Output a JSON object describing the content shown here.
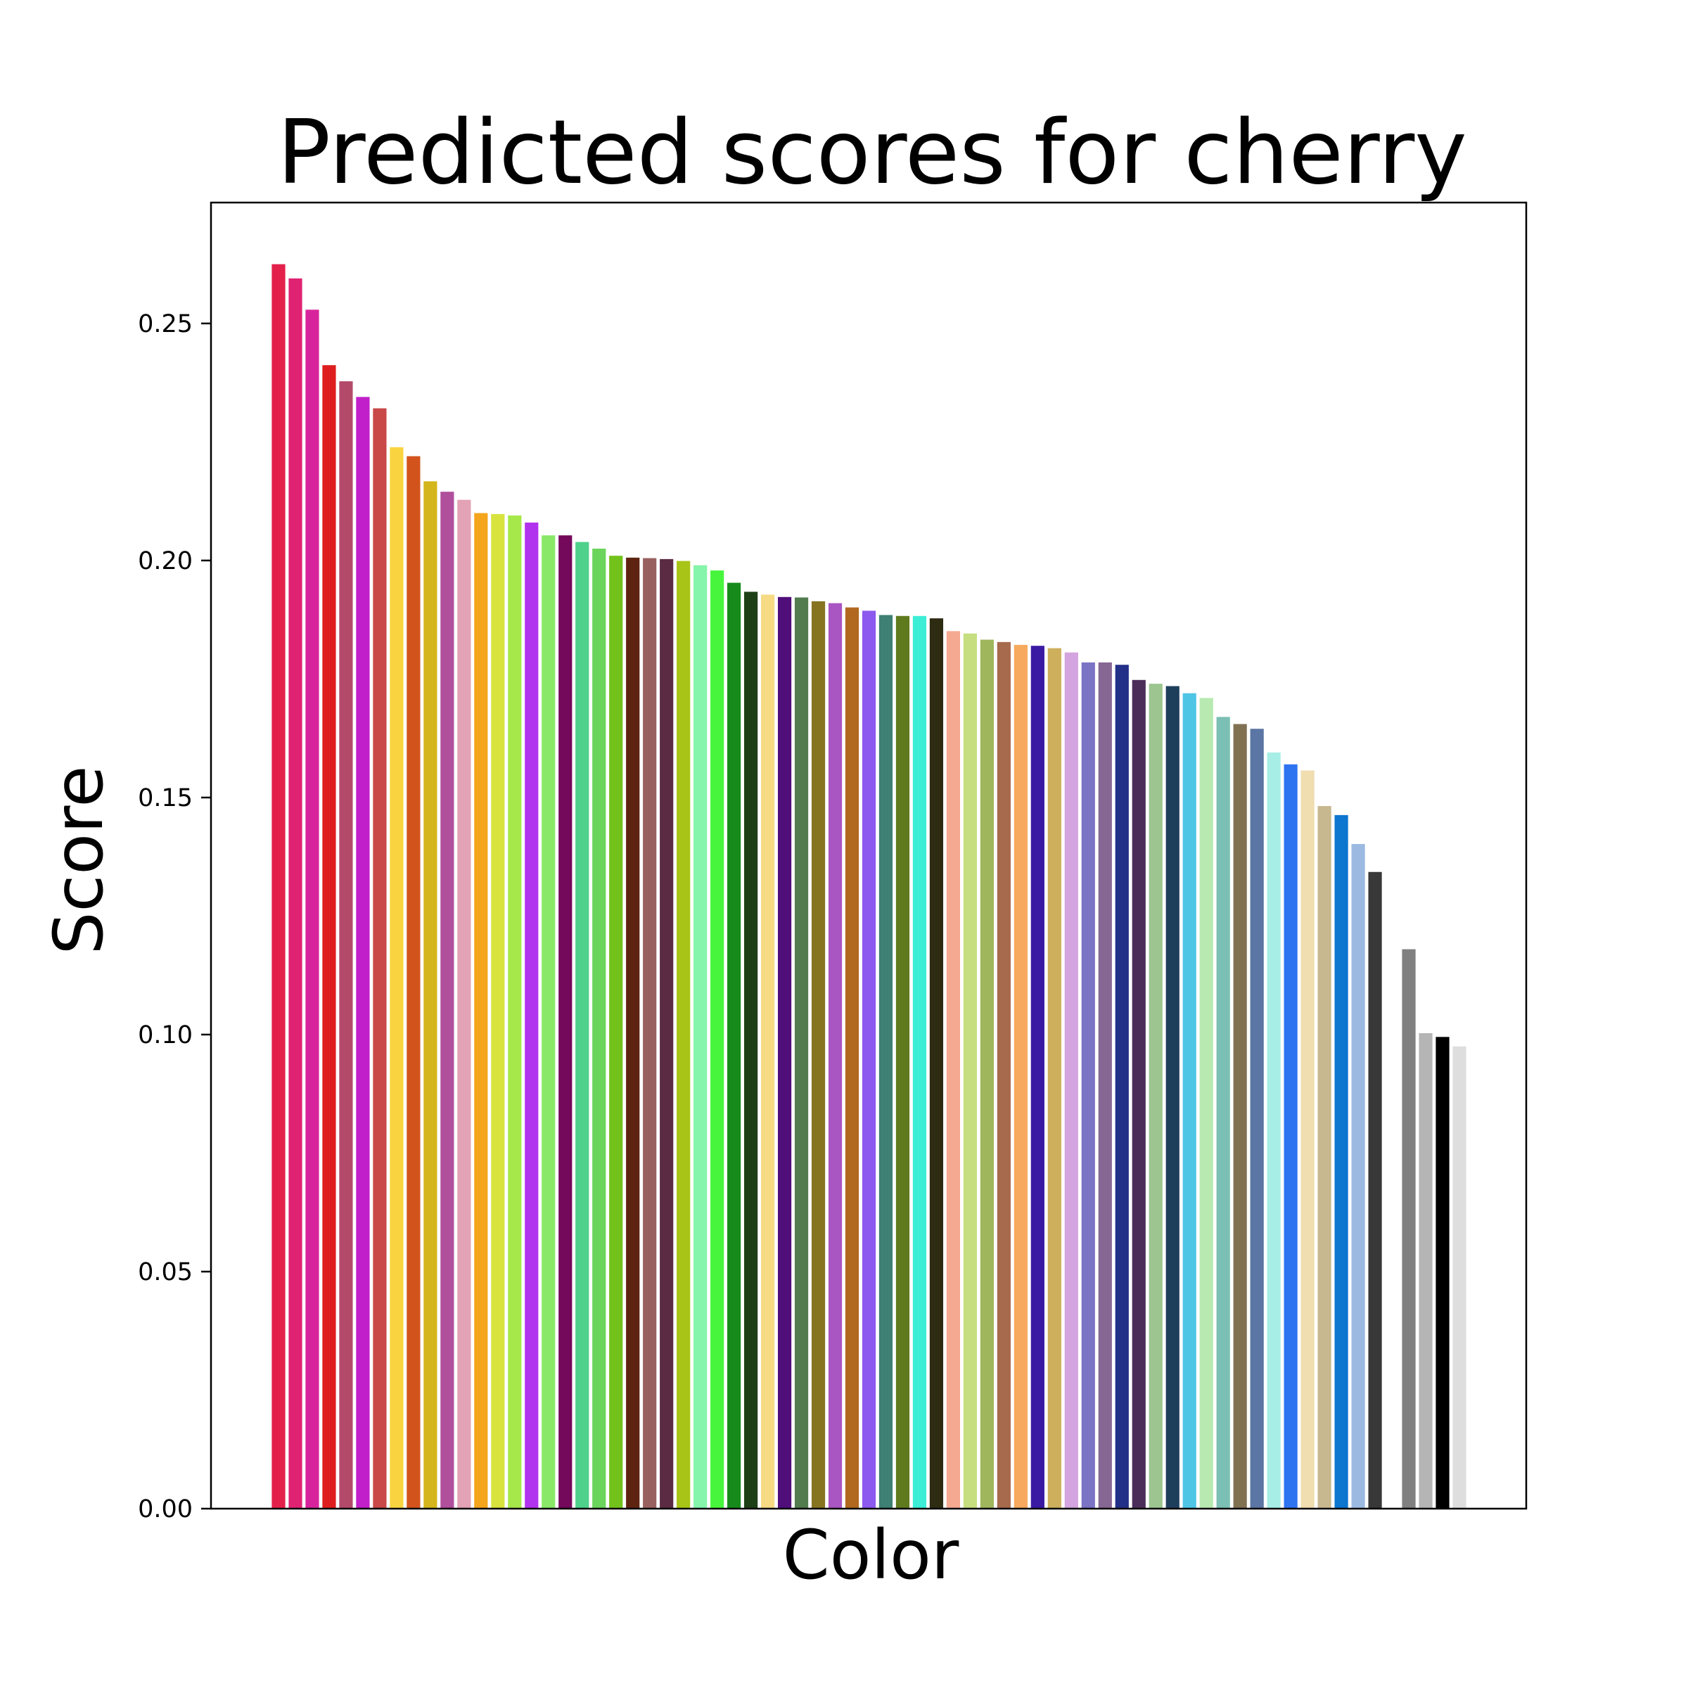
{
  "chart_data": {
    "type": "bar",
    "title": "Predicted scores for cherry",
    "xlabel": "Color",
    "ylabel": "Score",
    "ylim": [
      0,
      0.2755
    ],
    "yticks": [
      0.0,
      0.05,
      0.1,
      0.15,
      0.2,
      0.25
    ],
    "ytick_labels": [
      "0.00",
      "0.05",
      "0.10",
      "0.15",
      "0.20",
      "0.25"
    ],
    "grid": false,
    "x_ticks_shown": false,
    "bars": [
      {
        "value": 0.2625,
        "color": "#e3204a"
      },
      {
        "value": 0.2595,
        "color": "#e02272"
      },
      {
        "value": 0.2529,
        "color": "#d8249c"
      },
      {
        "value": 0.2412,
        "color": "#de1e1e"
      },
      {
        "value": 0.2378,
        "color": "#b34a6a"
      },
      {
        "value": 0.2345,
        "color": "#c11fc9"
      },
      {
        "value": 0.2321,
        "color": "#c94848"
      },
      {
        "value": 0.2239,
        "color": "#f9d440"
      },
      {
        "value": 0.222,
        "color": "#d2541c"
      },
      {
        "value": 0.2167,
        "color": "#d4b61c"
      },
      {
        "value": 0.2145,
        "color": "#b04f9c"
      },
      {
        "value": 0.2128,
        "color": "#e3a2b5"
      },
      {
        "value": 0.21,
        "color": "#f4a51c"
      },
      {
        "value": 0.2098,
        "color": "#d8e33e"
      },
      {
        "value": 0.2095,
        "color": "#a6e84a"
      },
      {
        "value": 0.208,
        "color": "#b233ee"
      },
      {
        "value": 0.2053,
        "color": "#8ae868"
      },
      {
        "value": 0.2053,
        "color": "#74085a"
      },
      {
        "value": 0.2039,
        "color": "#4ed18a"
      },
      {
        "value": 0.2025,
        "color": "#6ad45c"
      },
      {
        "value": 0.201,
        "color": "#73c21c"
      },
      {
        "value": 0.2006,
        "color": "#5e2310"
      },
      {
        "value": 0.2005,
        "color": "#996060"
      },
      {
        "value": 0.2003,
        "color": "#5a2b42"
      },
      {
        "value": 0.1999,
        "color": "#a8c417"
      },
      {
        "value": 0.199,
        "color": "#84f5ab"
      },
      {
        "value": 0.1979,
        "color": "#47f53c"
      },
      {
        "value": 0.1953,
        "color": "#168b1c"
      },
      {
        "value": 0.1934,
        "color": "#1d4016"
      },
      {
        "value": 0.1928,
        "color": "#f6db84"
      },
      {
        "value": 0.1923,
        "color": "#500e7a"
      },
      {
        "value": 0.1922,
        "color": "#527c4e"
      },
      {
        "value": 0.1914,
        "color": "#867421"
      },
      {
        "value": 0.191,
        "color": "#a955c2"
      },
      {
        "value": 0.1901,
        "color": "#b1691f"
      },
      {
        "value": 0.1894,
        "color": "#8c5aef"
      },
      {
        "value": 0.1885,
        "color": "#3e8073"
      },
      {
        "value": 0.1883,
        "color": "#5f7a1d"
      },
      {
        "value": 0.1883,
        "color": "#3ceed6"
      },
      {
        "value": 0.1878,
        "color": "#2e2b13"
      },
      {
        "value": 0.1851,
        "color": "#f4a990"
      },
      {
        "value": 0.1846,
        "color": "#c6de80"
      },
      {
        "value": 0.1833,
        "color": "#9fb65c"
      },
      {
        "value": 0.1828,
        "color": "#a76a4c"
      },
      {
        "value": 0.1822,
        "color": "#f7a95d"
      },
      {
        "value": 0.182,
        "color": "#3a1aa3"
      },
      {
        "value": 0.1815,
        "color": "#cdaf5c"
      },
      {
        "value": 0.1806,
        "color": "#d3a4df"
      },
      {
        "value": 0.1785,
        "color": "#7b73c4"
      },
      {
        "value": 0.1785,
        "color": "#866794"
      },
      {
        "value": 0.178,
        "color": "#223088"
      },
      {
        "value": 0.1748,
        "color": "#4c2d5a"
      },
      {
        "value": 0.174,
        "color": "#9cc58f"
      },
      {
        "value": 0.1735,
        "color": "#1e3f5c"
      },
      {
        "value": 0.172,
        "color": "#4fc5e6"
      },
      {
        "value": 0.171,
        "color": "#b7e9b0"
      },
      {
        "value": 0.167,
        "color": "#7cbfb4"
      },
      {
        "value": 0.1655,
        "color": "#817153"
      },
      {
        "value": 0.1645,
        "color": "#5b75a4"
      },
      {
        "value": 0.1595,
        "color": "#a7eee6"
      },
      {
        "value": 0.157,
        "color": "#2e73f0"
      },
      {
        "value": 0.1557,
        "color": "#f0ddb0"
      },
      {
        "value": 0.1482,
        "color": "#c8b890"
      },
      {
        "value": 0.1463,
        "color": "#0d76cf"
      },
      {
        "value": 0.1402,
        "color": "#9cbae1"
      },
      {
        "value": 0.1343,
        "color": "#383838"
      },
      {
        "value": 0.0,
        "color": "#ffffff"
      },
      {
        "value": 0.118,
        "color": "#808080"
      },
      {
        "value": 0.1003,
        "color": "#b5b5b5"
      },
      {
        "value": 0.0995,
        "color": "#000000"
      },
      {
        "value": 0.0975,
        "color": "#dedede"
      }
    ]
  }
}
